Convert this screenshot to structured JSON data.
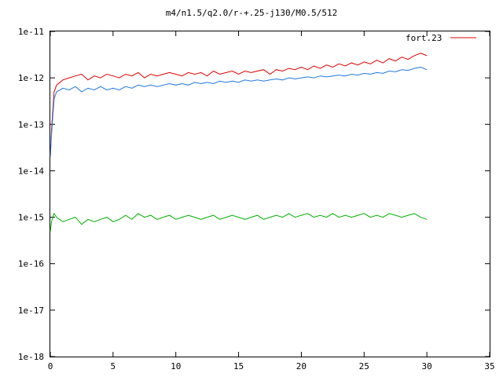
{
  "chart_data": {
    "type": "line",
    "title": "m4/n1.5/q2.0/r-+.25-j130/M0.5/512",
    "xlabel": "",
    "ylabel": "",
    "xlim": [
      0,
      35
    ],
    "ylim": [
      1e-18,
      1e-11
    ],
    "yscale": "log",
    "x_ticks": [
      0,
      5,
      10,
      15,
      20,
      25,
      30,
      35
    ],
    "x_tick_labels": [
      "0",
      "5",
      "10",
      "15",
      "20",
      "25",
      "30",
      "35"
    ],
    "y_ticks": [
      1e-18,
      1e-17,
      1e-16,
      1e-15,
      1e-14,
      1e-13,
      1e-12,
      1e-11
    ],
    "y_tick_labels": [
      "1e-18",
      "1e-17",
      "1e-16",
      "1e-15",
      "1e-14",
      "1e-13",
      "1e-12",
      "1e-11"
    ],
    "grid": false,
    "legend_position": "top-right",
    "series": [
      {
        "name": "fort.23",
        "color": "#e00000",
        "x": [
          0,
          0.1,
          0.2,
          0.3,
          0.5,
          1,
          1.5,
          2,
          2.5,
          3,
          3.5,
          4,
          4.5,
          5,
          5.5,
          6,
          6.5,
          7,
          7.5,
          8,
          8.5,
          9,
          9.5,
          10,
          10.5,
          11,
          11.5,
          12,
          12.5,
          13,
          13.5,
          14,
          14.5,
          15,
          15.5,
          16,
          16.5,
          17,
          17.5,
          18,
          18.5,
          19,
          19.5,
          20,
          20.5,
          21,
          21.5,
          22,
          22.5,
          23,
          23.5,
          24,
          24.5,
          25,
          25.5,
          26,
          26.5,
          27,
          27.5,
          28,
          28.5,
          29,
          29.5,
          30
        ],
        "y": [
          2e-14,
          8e-14,
          2e-13,
          5e-13,
          7e-13,
          9e-13,
          1e-12,
          1.1e-12,
          1.2e-12,
          9e-13,
          1.1e-12,
          1e-12,
          1.2e-12,
          1.1e-12,
          1e-12,
          1.2e-12,
          1.1e-12,
          1.3e-12,
          1e-12,
          1.2e-12,
          1.1e-12,
          1.2e-12,
          1.3e-12,
          1.2e-12,
          1.1e-12,
          1.3e-12,
          1.2e-12,
          1.3e-12,
          1.1e-12,
          1.4e-12,
          1.2e-12,
          1.3e-12,
          1.4e-12,
          1.2e-12,
          1.4e-12,
          1.3e-12,
          1.4e-12,
          1.5e-12,
          1.2e-12,
          1.5e-12,
          1.4e-12,
          1.6e-12,
          1.5e-12,
          1.7e-12,
          1.5e-12,
          1.8e-12,
          1.6e-12,
          1.9e-12,
          1.7e-12,
          2e-12,
          1.8e-12,
          2.1e-12,
          1.9e-12,
          2.2e-12,
          2e-12,
          2.4e-12,
          2.1e-12,
          2.6e-12,
          2.3e-12,
          2.8e-12,
          2.5e-12,
          3e-12,
          3.4e-12,
          3e-12
        ]
      },
      {
        "name": "",
        "color": "#1f78e0",
        "x": [
          0,
          0.1,
          0.2,
          0.3,
          0.5,
          1,
          1.5,
          2,
          2.5,
          3,
          3.5,
          4,
          4.5,
          5,
          5.5,
          6,
          6.5,
          7,
          7.5,
          8,
          8.5,
          9,
          9.5,
          10,
          10.5,
          11,
          11.5,
          12,
          12.5,
          13,
          13.5,
          14,
          14.5,
          15,
          15.5,
          16,
          16.5,
          17,
          17.5,
          18,
          18.5,
          19,
          19.5,
          20,
          20.5,
          21,
          21.5,
          22,
          22.5,
          23,
          23.5,
          24,
          24.5,
          25,
          25.5,
          26,
          26.5,
          27,
          27.5,
          28,
          28.5,
          29,
          29.5,
          30
        ],
        "y": [
          2e-14,
          6e-14,
          1.5e-13,
          3.5e-13,
          5e-13,
          6e-13,
          5.5e-13,
          6.5e-13,
          5e-13,
          6e-13,
          5.5e-13,
          6.5e-13,
          5.5e-13,
          6e-13,
          5.5e-13,
          6.5e-13,
          6e-13,
          7e-13,
          6.5e-13,
          7e-13,
          6.5e-13,
          7e-13,
          7.5e-13,
          7e-13,
          7.5e-13,
          7e-13,
          8e-13,
          7.5e-13,
          8e-13,
          7.5e-13,
          8.5e-13,
          8e-13,
          8.5e-13,
          8e-13,
          9e-13,
          8.5e-13,
          9e-13,
          8.5e-13,
          9e-13,
          9.5e-13,
          9e-13,
          1e-12,
          9.5e-13,
          1e-12,
          1.05e-12,
          1e-12,
          1.1e-12,
          1.05e-12,
          1.1e-12,
          1.15e-12,
          1.1e-12,
          1.2e-12,
          1.15e-12,
          1.25e-12,
          1.2e-12,
          1.3e-12,
          1.25e-12,
          1.4e-12,
          1.35e-12,
          1.5e-12,
          1.45e-12,
          1.6e-12,
          1.7e-12,
          1.5e-12
        ]
      },
      {
        "name": "",
        "color": "#00b000",
        "x": [
          0,
          0.1,
          0.2,
          0.3,
          0.5,
          1,
          1.5,
          2,
          2.5,
          3,
          3.5,
          4,
          4.5,
          5,
          5.5,
          6,
          6.5,
          7,
          7.5,
          8,
          8.5,
          9,
          9.5,
          10,
          10.5,
          11,
          11.5,
          12,
          12.5,
          13,
          13.5,
          14,
          14.5,
          15,
          15.5,
          16,
          16.5,
          17,
          17.5,
          18,
          18.5,
          19,
          19.5,
          20,
          20.5,
          21,
          21.5,
          22,
          22.5,
          23,
          23.5,
          24,
          24.5,
          25,
          25.5,
          26,
          26.5,
          27,
          27.5,
          28,
          28.5,
          29,
          29.5,
          30
        ],
        "y": [
          5e-16,
          8e-16,
          1e-15,
          1.2e-15,
          1e-15,
          8e-16,
          9e-16,
          1e-15,
          7e-16,
          9e-16,
          8e-16,
          9e-16,
          1e-15,
          8e-16,
          9e-16,
          1.1e-15,
          9e-16,
          1.2e-15,
          1e-15,
          1.1e-15,
          9e-16,
          1e-15,
          1.1e-15,
          9e-16,
          1e-15,
          1.1e-15,
          1e-15,
          9e-16,
          1e-15,
          1.1e-15,
          9e-16,
          1e-15,
          1.1e-15,
          1e-15,
          9e-16,
          1e-15,
          1.1e-15,
          9e-16,
          1e-15,
          1.1e-15,
          1e-15,
          1.2e-15,
          1e-15,
          1.1e-15,
          1.2e-15,
          1e-15,
          1.1e-15,
          1e-15,
          1.2e-15,
          1e-15,
          1.1e-15,
          1e-15,
          1.1e-15,
          1.2e-15,
          1e-15,
          1.1e-15,
          1e-15,
          1.2e-15,
          1.1e-15,
          1e-15,
          1.1e-15,
          1.2e-15,
          1e-15,
          9e-16
        ]
      }
    ]
  }
}
